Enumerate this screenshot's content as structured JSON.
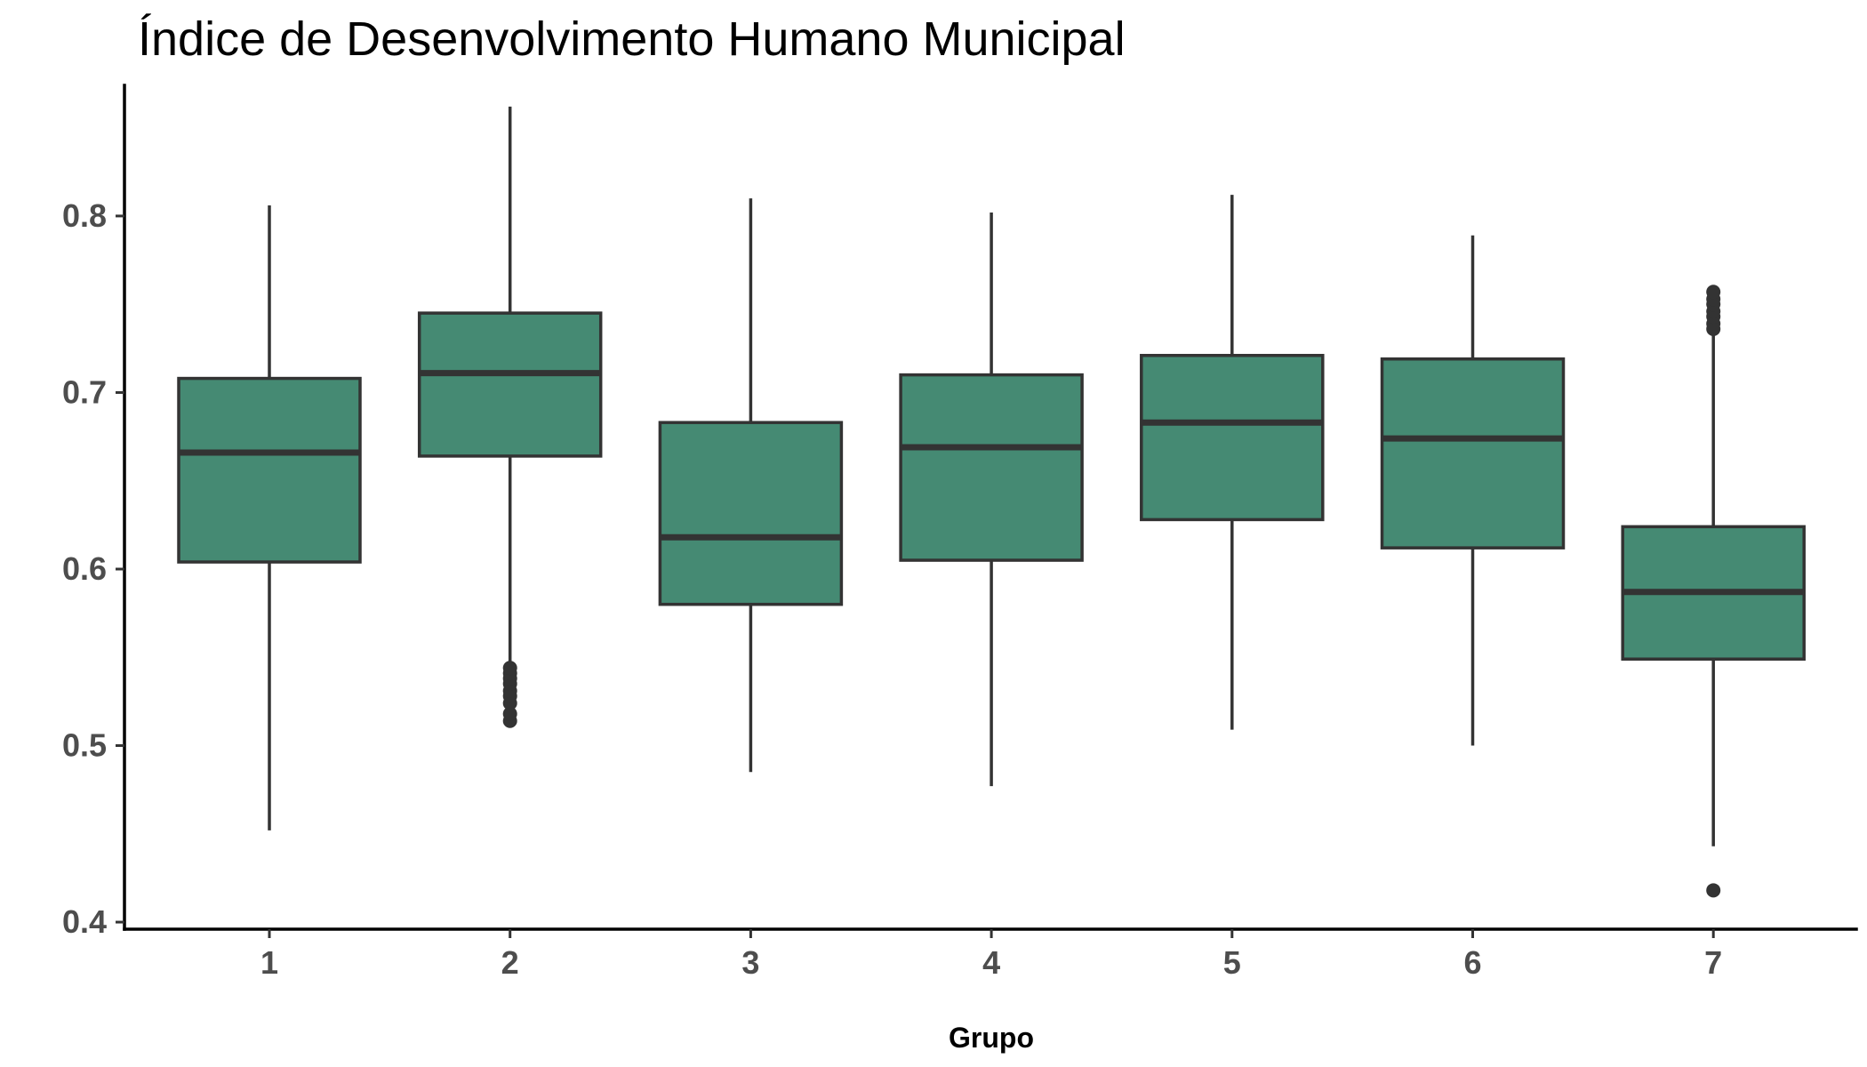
{
  "chart_data": {
    "type": "boxplot",
    "title": "Índice de Desenvolvimento Humano Municipal",
    "xlabel": "Grupo",
    "ylabel": "",
    "ylim": [
      0.396,
      0.874
    ],
    "y_ticks": [
      0.4,
      0.5,
      0.6,
      0.7,
      0.8
    ],
    "y_tick_labels": [
      "0.4",
      "0.5",
      "0.6",
      "0.7",
      "0.8"
    ],
    "categories": [
      "1",
      "2",
      "3",
      "4",
      "5",
      "6",
      "7"
    ],
    "grid": false,
    "legend": "none",
    "fill_color": "#458a73",
    "line_color": "#333333",
    "boxes": [
      {
        "group": "1",
        "whisker_low": 0.452,
        "q1": 0.604,
        "median": 0.666,
        "q3": 0.708,
        "whisker_high": 0.806,
        "outliers": []
      },
      {
        "group": "2",
        "whisker_low": 0.546,
        "q1": 0.664,
        "median": 0.711,
        "q3": 0.745,
        "whisker_high": 0.862,
        "outliers": [
          0.514,
          0.518,
          0.524,
          0.528,
          0.531,
          0.535,
          0.538,
          0.541,
          0.544
        ]
      },
      {
        "group": "3",
        "whisker_low": 0.485,
        "q1": 0.58,
        "median": 0.618,
        "q3": 0.683,
        "whisker_high": 0.81,
        "outliers": []
      },
      {
        "group": "4",
        "whisker_low": 0.477,
        "q1": 0.605,
        "median": 0.669,
        "q3": 0.71,
        "whisker_high": 0.802,
        "outliers": []
      },
      {
        "group": "5",
        "whisker_low": 0.509,
        "q1": 0.628,
        "median": 0.683,
        "q3": 0.721,
        "whisker_high": 0.812,
        "outliers": []
      },
      {
        "group": "6",
        "whisker_low": 0.5,
        "q1": 0.612,
        "median": 0.674,
        "q3": 0.719,
        "whisker_high": 0.789,
        "outliers": []
      },
      {
        "group": "7",
        "whisker_low": 0.443,
        "q1": 0.549,
        "median": 0.587,
        "q3": 0.624,
        "whisker_high": 0.733,
        "outliers": [
          0.418,
          0.736,
          0.739,
          0.743,
          0.746,
          0.75,
          0.753,
          0.757
        ]
      }
    ]
  }
}
